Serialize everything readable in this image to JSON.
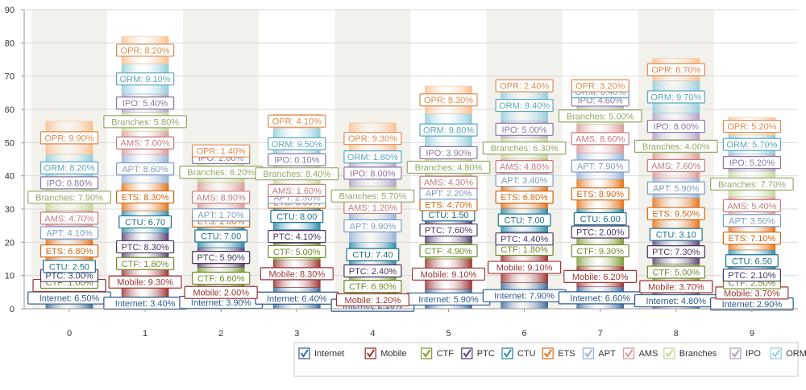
{
  "chart_data": {
    "type": "bar",
    "stacked": true,
    "categories": [
      "0",
      "1",
      "2",
      "3",
      "4",
      "5",
      "6",
      "7",
      "8",
      "9"
    ],
    "ylim": [
      0,
      90
    ],
    "yticks": [
      0,
      10,
      20,
      30,
      40,
      50,
      60,
      70,
      80,
      90
    ],
    "grid": true,
    "legend_position": "bottom-right",
    "series": [
      {
        "name": "Internet",
        "color": "#3e6a98",
        "label_color": "#2c5a8a",
        "values": [
          6.5,
          3.4,
          3.9,
          6.4,
          2.1,
          5.9,
          7.9,
          6.6,
          4.8,
          2.9
        ],
        "labels": [
          "Internet: 6.50%",
          "Internet: 3.40%",
          "Internet: 3.90%",
          "Internet: 6.40%",
          "Internet: 2.10%",
          "Internet: 5.90%",
          "Internet: 7.90%",
          "Internet: 6.60%",
          "Internet: 4.80%",
          "Internet: 2.90%"
        ]
      },
      {
        "name": "Mobile",
        "color": "#9d3434",
        "label_color": "#9d3434",
        "values": [
          1.0,
          9.3,
          2.0,
          8.3,
          1.2,
          9.1,
          9.1,
          6.2,
          3.7,
          3.7
        ],
        "labels": [
          "Mobile: 1.00%",
          "Mobile: 9.30%",
          "Mobile: 2.00%",
          "Mobile: 8.30%",
          "Mobile: 1.20%",
          "Mobile: 9.10%",
          "Mobile: 9.10%",
          "Mobile: 6.20%",
          "Mobile: 3.70%",
          "Mobile: 3.70%"
        ]
      },
      {
        "name": "CTF",
        "color": "#7f9c38",
        "label_color": "#6f8a2c",
        "values": [
          1.0,
          1.8,
          6.6,
          5.0,
          6.9,
          4.9,
          1.8,
          9.3,
          5.0,
          2.5
        ],
        "labels": [
          "CTF: 1.00%",
          "CTF: 1.80%",
          "CTF: 6.60%",
          "CTF: 5.00%",
          "CTF: 6.90%",
          "CTF: 4.90%",
          "CTF: 1.80%",
          "CTF: 9.30%",
          "CTF: 5.00%",
          "CTF: 2.50%"
        ]
      },
      {
        "name": "PTC",
        "color": "#5b4276",
        "label_color": "#4a3466",
        "values": [
          3.0,
          8.3,
          5.9,
          4.1,
          2.4,
          7.6,
          4.4,
          2.0,
          7.3,
          2.1
        ],
        "labels": [
          "PTC: 3.00%",
          "PTC: 8.30%",
          "PTC: 5.90%",
          "PTC: 4.10%",
          "PTC: 2.40%",
          "PTC: 7.60%",
          "PTC: 4.40%",
          "PTC: 2.00%",
          "PTC: 7.30%",
          "PTC: 2.10%"
        ]
      },
      {
        "name": "CTU",
        "color": "#2d8aa8",
        "label_color": "#1e6f8a",
        "values": [
          2.5,
          6.7,
          7.0,
          8.0,
          7.4,
          1.5,
          7.0,
          6.0,
          3.1,
          6.5
        ],
        "labels": [
          "CTU: 2.50",
          "CTU: 6.70",
          "CTU: 7.00",
          "CTU: 8.00",
          "CTU: 7.40",
          "CTU: 1.50",
          "CTU: 7.00",
          "CTU: 6.00",
          "CTU: 3.10",
          "CTU: 6.50"
        ]
      },
      {
        "name": "ETS",
        "color": "#e6731a",
        "label_color": "#d0640e",
        "values": [
          6.8,
          8.3,
          2.0,
          0.5,
          0.0,
          4.7,
          6.8,
          8.9,
          9.5,
          7.1
        ],
        "labels": [
          "ETS: 6.80%",
          "ETS: 8.30%",
          "ETS: 2.00%",
          "ETS: 0.50%",
          "",
          "ETS: 4.70%",
          "ETS: 6.80%",
          "ETS: 8.90%",
          "ETS: 9.50%",
          "ETS: 7.10%"
        ]
      },
      {
        "name": "APT",
        "color": "#97b2d8",
        "label_color": "#7e9cc4",
        "values": [
          4.1,
          8.6,
          1.7,
          2.5,
          9.9,
          2.2,
          3.4,
          7.9,
          5.9,
          3.5
        ],
        "labels": [
          "APT: 4.10%",
          "APT: 8.60%",
          "APT: 1.70%",
          "APT: 2.50%",
          "APT: 9.90%",
          "APT: 2.20%",
          "APT: 3.40%",
          "APT: 7.90%",
          "APT: 5.90%",
          "APT: 3.50%"
        ]
      },
      {
        "name": "AMS",
        "color": "#dd9a98",
        "label_color": "#c47c7a",
        "values": [
          4.7,
          7.0,
          8.9,
          1.6,
          1.2,
          4.3,
          4.8,
          8.6,
          7.6,
          5.4
        ],
        "labels": [
          "AMS: 4.70%",
          "AMS: 7.00%",
          "AMS: 8.90%",
          "AMS: 1.60%",
          "AMS: 1.20%",
          "AMS: 4.30%",
          "AMS: 4.80%",
          "AMS: 8.60%",
          "AMS: 7.60%",
          "AMS: 5.40%"
        ]
      },
      {
        "name": "Branches",
        "color": "#c4d79b",
        "label_color": "#92a866",
        "values": [
          7.9,
          5.8,
          6.2,
          8.4,
          5.7,
          4.8,
          6.3,
          5.0,
          4.0,
          7.7
        ],
        "labels": [
          "Branches: 7.90%",
          "Branches: 5.80%",
          "Branches: 6.20%",
          "Branches: 8.40%",
          "Branches: 5.70%",
          "Branches: 4.80%",
          "Branches: 6.30%",
          "Branches: 5.00%",
          "Branches: 4.00%",
          "Branches: 7.70%"
        ]
      },
      {
        "name": "IPO",
        "color": "#b3a2c7",
        "label_color": "#8a76a4",
        "values": [
          0.8,
          5.4,
          2.6,
          0.1,
          8.0,
          3.9,
          5.0,
          4.6,
          8.0,
          5.2
        ],
        "labels": [
          "IPO: 0.80%",
          "IPO: 5.40%",
          "IPO: 2.60%",
          "IPO: 0.10%",
          "IPO: 8.00%",
          "IPO: 3.90%",
          "IPO: 5.00%",
          "IPO: 4.60%",
          "IPO: 8.00%",
          "IPO: 5.20%"
        ]
      },
      {
        "name": "ORM",
        "color": "#92cddc",
        "label_color": "#5aa6bf",
        "values": [
          8.2,
          9.1,
          0.0,
          9.5,
          1.8,
          9.8,
          9.4,
          0.4,
          9.7,
          5.7
        ],
        "labels": [
          "ORM: 8.20%",
          "ORM: 9.10%",
          "",
          "ORM: 9.50%",
          "ORM: 1.80%",
          "ORM: 9.80%",
          "ORM: 9.40%",
          "ORM: 0.40%",
          "ORM: 9.70%",
          "ORM: 5.70%"
        ]
      },
      {
        "name": "OPR",
        "color": "#fabf8f",
        "label_color": "#e08a50",
        "values": [
          9.9,
          8.2,
          1.4,
          4.1,
          9.3,
          8.3,
          2.4,
          3.2,
          6.7,
          5.2
        ],
        "labels": [
          "OPR: 9.90%",
          "OPR: 8.20%",
          "OPR: 1.40%",
          "OPR: 4.10%",
          "OPR: 9.30%",
          "OPR: 8.30%",
          "OPR: 2.40%",
          "OPR: 3.20%",
          "OPR: 6.70%",
          "OPR: 5.20%"
        ]
      }
    ]
  }
}
